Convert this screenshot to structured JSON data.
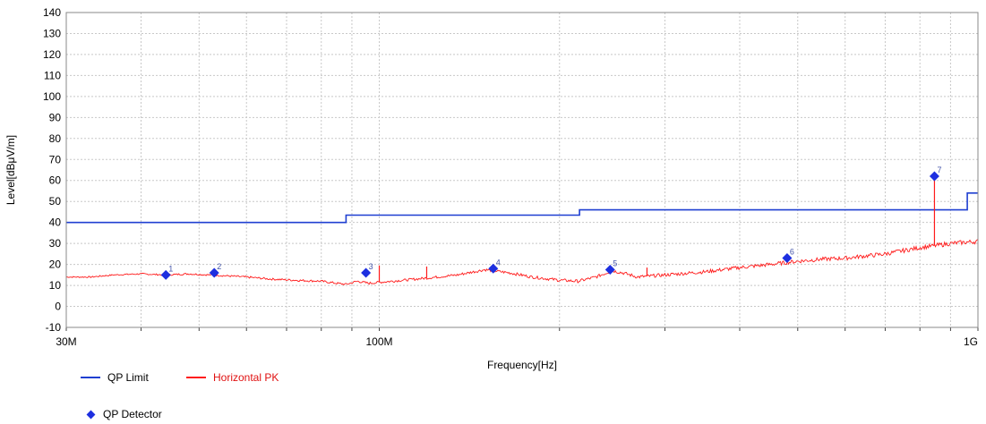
{
  "chart_data": {
    "type": "line",
    "xlabel": "Frequency[Hz]",
    "ylabel": "Level[dBμV/m]",
    "xscale": "log",
    "xlim": [
      30000000,
      1000000000
    ],
    "ylim": [
      -10,
      140
    ],
    "grid": true,
    "x_tick_labels": [
      {
        "value": 30000000,
        "label": "30M"
      },
      {
        "value": 100000000,
        "label": "100M"
      },
      {
        "value": 1000000000,
        "label": "1G"
      }
    ],
    "y_ticks": [
      -10,
      0,
      10,
      20,
      30,
      40,
      50,
      60,
      70,
      80,
      90,
      100,
      110,
      120,
      130,
      140
    ],
    "series": [
      {
        "name": "QP Limit",
        "color": "#1f3fd1",
        "style": "step",
        "points": [
          [
            30000000,
            40
          ],
          [
            88000000,
            40
          ],
          [
            88000000,
            43.5
          ],
          [
            216000000,
            43.5
          ],
          [
            216000000,
            46
          ],
          [
            960000000,
            46
          ],
          [
            960000000,
            54
          ],
          [
            1000000000,
            54
          ]
        ]
      },
      {
        "name": "Horizontal PK",
        "color": "#ff1a1a",
        "style": "line",
        "points": [
          [
            30000000,
            14
          ],
          [
            33000000,
            14
          ],
          [
            36000000,
            15
          ],
          [
            40000000,
            15.5
          ],
          [
            44000000,
            15
          ],
          [
            48000000,
            15.5
          ],
          [
            52000000,
            15
          ],
          [
            56000000,
            14.5
          ],
          [
            60000000,
            14
          ],
          [
            66000000,
            13
          ],
          [
            72000000,
            12.5
          ],
          [
            80000000,
            12
          ],
          [
            85000000,
            11
          ],
          [
            88000000,
            10.5
          ],
          [
            92000000,
            12
          ],
          [
            96000000,
            11
          ],
          [
            100000000,
            11.5
          ],
          [
            110000000,
            12.5
          ],
          [
            120000000,
            13.5
          ],
          [
            135000000,
            15
          ],
          [
            150000000,
            17.5
          ],
          [
            165000000,
            16
          ],
          [
            180000000,
            14
          ],
          [
            200000000,
            12.5
          ],
          [
            215000000,
            12
          ],
          [
            230000000,
            14
          ],
          [
            245000000,
            17
          ],
          [
            255000000,
            16
          ],
          [
            270000000,
            14
          ],
          [
            300000000,
            15
          ],
          [
            350000000,
            16.5
          ],
          [
            400000000,
            18.5
          ],
          [
            450000000,
            20
          ],
          [
            500000000,
            21.5
          ],
          [
            550000000,
            22.5
          ],
          [
            600000000,
            23
          ],
          [
            700000000,
            25
          ],
          [
            800000000,
            28
          ],
          [
            850000000,
            29
          ],
          [
            900000000,
            30
          ],
          [
            1000000000,
            31
          ]
        ],
        "spikes": [
          {
            "x": 100000000,
            "y": 19.5
          },
          {
            "x": 120000000,
            "y": 19
          },
          {
            "x": 280000000,
            "y": 18.5
          },
          {
            "x": 846000000,
            "y": 62
          }
        ]
      }
    ],
    "markers": {
      "name": "QP Detector",
      "color": "#1d2fe0",
      "points": [
        {
          "label": "1",
          "x": 44000000,
          "y": 15
        },
        {
          "label": "2",
          "x": 53000000,
          "y": 16
        },
        {
          "label": "3",
          "x": 95000000,
          "y": 16
        },
        {
          "label": "4",
          "x": 155000000,
          "y": 18
        },
        {
          "label": "5",
          "x": 243000000,
          "y": 17.5
        },
        {
          "label": "6",
          "x": 480000000,
          "y": 23
        },
        {
          "label": "7",
          "x": 846000000,
          "y": 62
        }
      ]
    }
  },
  "legend": {
    "qp_limit": "QP Limit",
    "horizontal_pk": "Horizontal PK",
    "qp_detector": "QP Detector"
  },
  "colors": {
    "limit": "#1f3fd1",
    "pk": "#ff1a1a",
    "detector": "#1d2fe0",
    "grid": "#c8c8c8"
  }
}
